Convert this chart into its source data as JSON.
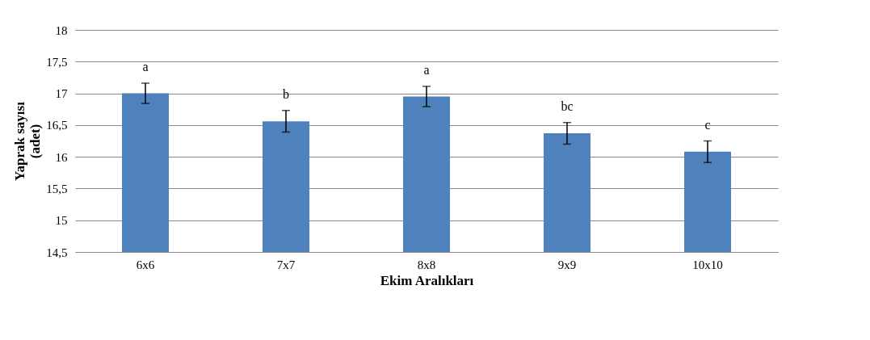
{
  "chart_data": {
    "type": "bar",
    "xlabel": "Ekim Aralıkları",
    "ylabel": "Yaprak sayısı\n(adet)",
    "categories": [
      "6x6",
      "7x7",
      "8x8",
      "9x9",
      "10x10"
    ],
    "values": [
      17.0,
      16.56,
      16.95,
      16.37,
      16.08
    ],
    "errors": [
      0.16,
      0.17,
      0.16,
      0.17,
      0.17
    ],
    "color": "#4f81bd",
    "ylim": [
      14.5,
      18
    ],
    "yticks": [
      {
        "value": 14.5,
        "label": "14,5"
      },
      15,
      {
        "value": 15.5,
        "label": "15,5"
      },
      16,
      {
        "value": 16.5,
        "label": "16,5"
      },
      17,
      {
        "value": 17.5,
        "label": "17,5"
      },
      18
    ],
    "grid": "y",
    "annotations": [
      "a",
      "b",
      "a",
      "bc",
      "c"
    ]
  }
}
